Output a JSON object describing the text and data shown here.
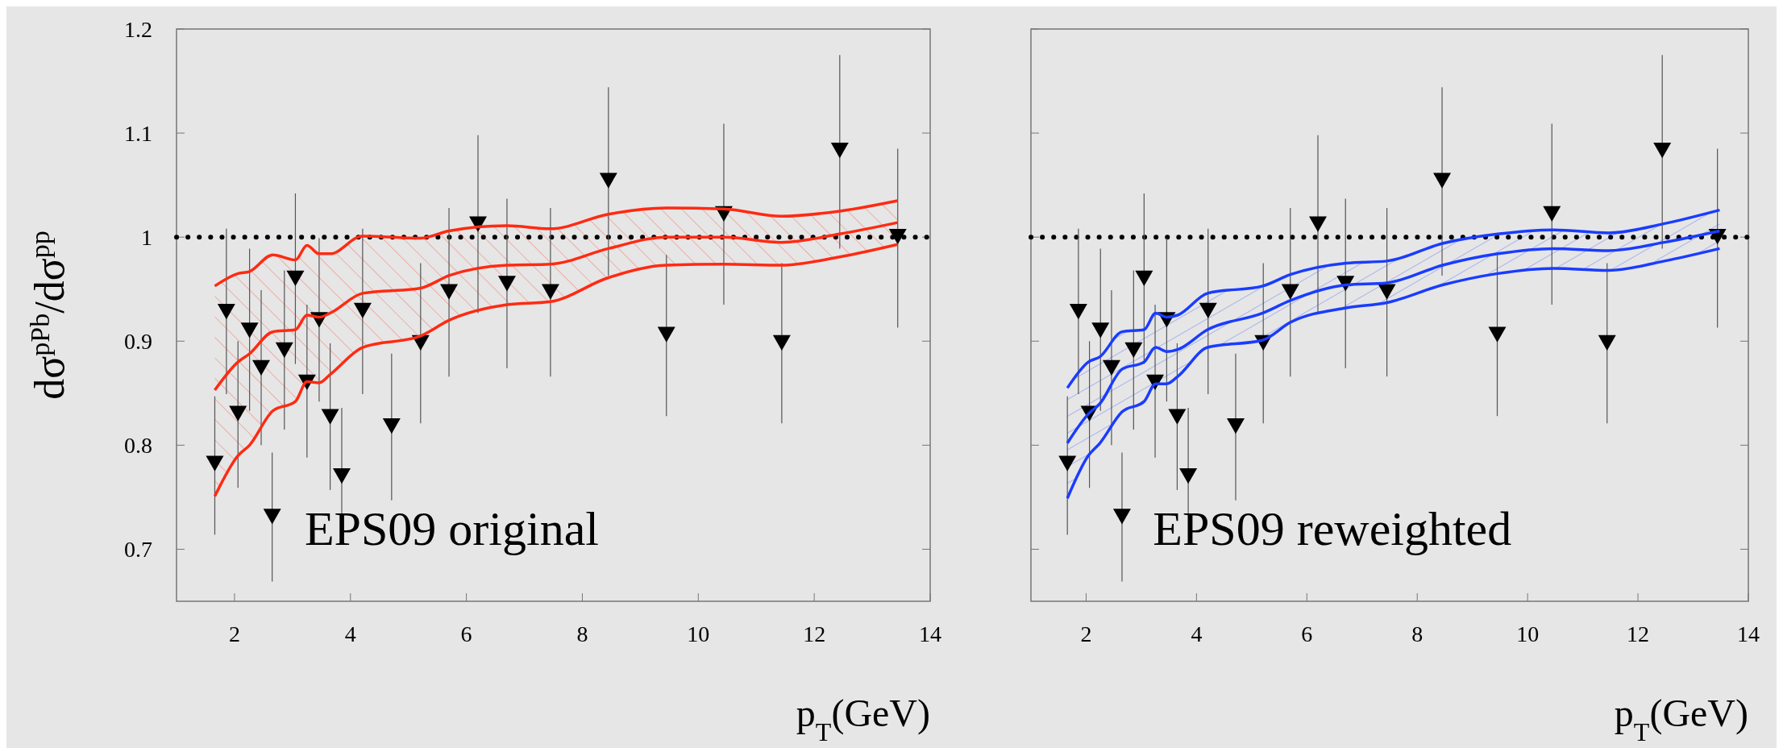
{
  "chart_data": [
    {
      "type": "scatter",
      "ylabel": "dσ$^{pPb}$/dσ$^{pp}$",
      "xlabel": "p$_{T}$(GeV)",
      "annotations": [
        "EPS09 original"
      ],
      "xlim": [
        1,
        14
      ],
      "ylim": [
        0.65,
        1.2
      ],
      "xticks": [
        2,
        4,
        6,
        8,
        10,
        12,
        14
      ],
      "yticks": [
        0.7,
        0.8,
        0.9,
        1,
        1.1,
        1.2
      ],
      "marker": "triangle",
      "grid": false,
      "ref_lines": [
        {
          "axis": "y",
          "value": 1,
          "line_style": "dotted",
          "color": "#000000"
        }
      ],
      "series": [
        {
          "color": "#000000",
          "x": [
            1.66,
            1.86,
            2.06,
            2.26,
            2.46,
            2.65,
            2.86,
            3.05,
            3.25,
            3.46,
            3.65,
            3.85,
            4.21,
            4.71,
            5.21,
            5.7,
            6.2,
            6.7,
            7.45,
            8.45,
            9.45,
            10.44,
            11.44,
            12.44,
            13.44
          ],
          "values": [
            0.783,
            0.929,
            0.831,
            0.911,
            0.875,
            0.732,
            0.892,
            0.961,
            0.861,
            0.921,
            0.828,
            0.771,
            0.93,
            0.819,
            0.899,
            0.948,
            1.013,
            0.956,
            0.948,
            1.055,
            0.907,
            1.023,
            0.899,
            1.084,
            1.001
          ],
          "errors": [
            [
              0.714,
              0.847
            ],
            [
              0.849,
              1.008
            ],
            [
              0.759,
              0.9
            ],
            [
              0.833,
              0.989
            ],
            [
              0.8,
              0.949
            ],
            [
              0.669,
              0.793
            ],
            [
              0.815,
              0.968
            ],
            [
              0.878,
              1.042
            ],
            [
              0.788,
              0.935
            ],
            [
              0.842,
              0.999
            ],
            [
              0.757,
              0.898
            ],
            [
              0.705,
              0.836
            ],
            [
              0.849,
              1.008
            ],
            [
              0.747,
              0.888
            ],
            [
              0.821,
              0.975
            ],
            [
              0.866,
              1.028
            ],
            [
              0.927,
              1.098
            ],
            [
              0.874,
              1.037
            ],
            [
              0.866,
              1.028
            ],
            [
              0.963,
              1.144
            ],
            [
              0.828,
              0.983
            ],
            [
              0.935,
              1.109
            ],
            [
              0.821,
              0.975
            ],
            [
              0.989,
              1.175
            ],
            [
              0.913,
              1.085
            ]
          ]
        },
        {
          "type": "line",
          "color": "#ff2a12",
          "line_style": "solid",
          "x": [
            1.66,
            2.06,
            2.26,
            2.66,
            3.05,
            3.25,
            3.46,
            3.65,
            4.21,
            5.21,
            5.7,
            6.7,
            7.45,
            8.45,
            9.45,
            10.44,
            11.44,
            12.44,
            13.44
          ],
          "marker": "none",
          "values": [
            0.853,
            0.88,
            0.888,
            0.909,
            0.911,
            0.925,
            0.923,
            0.927,
            0.946,
            0.951,
            0.963,
            0.973,
            0.974,
            0.989,
            1.0,
            1.0,
            0.995,
            1.003,
            1.014
          ],
          "lower": [
            0.751,
            0.79,
            0.8,
            0.833,
            0.842,
            0.861,
            0.86,
            0.868,
            0.894,
            0.905,
            0.92,
            0.935,
            0.938,
            0.961,
            0.973,
            0.974,
            0.973,
            0.981,
            0.993
          ],
          "upper": [
            0.953,
            0.965,
            0.967,
            0.983,
            0.978,
            0.992,
            0.984,
            0.984,
            1.001,
            0.999,
            1.006,
            1.011,
            1.008,
            1.022,
            1.028,
            1.027,
            1.02,
            1.025,
            1.035
          ]
        },
        {
          "type": "line",
          "color": "#ff2a12",
          "line_style": "solid",
          "x": [
            1.66,
            2.06,
            2.26,
            2.66,
            3.05,
            3.25,
            3.46,
            3.65,
            4.21,
            5.21,
            5.7,
            6.7,
            7.45,
            8.45,
            9.45,
            10.44,
            11.44,
            12.44,
            13.44
          ],
          "marker": "none",
          "values": [
            0.751,
            0.79,
            0.8,
            0.833,
            0.842,
            0.861,
            0.86,
            0.868,
            0.894,
            0.905,
            0.92,
            0.935,
            0.938,
            0.961,
            0.973,
            0.974,
            0.973,
            0.981,
            0.993
          ]
        },
        {
          "type": "line",
          "color": "#ff2a12",
          "line_style": "solid",
          "x": [
            1.66,
            2.06,
            2.26,
            2.66,
            3.05,
            3.25,
            3.46,
            3.65,
            4.21,
            5.21,
            5.7,
            6.7,
            7.45,
            8.45,
            9.45,
            10.44,
            11.44,
            12.44,
            13.44
          ],
          "marker": "none",
          "values": [
            0.953,
            0.965,
            0.967,
            0.983,
            0.978,
            0.992,
            0.984,
            0.984,
            1.001,
            0.999,
            1.006,
            1.011,
            1.008,
            1.022,
            1.028,
            1.027,
            1.02,
            1.025,
            1.035
          ]
        }
      ]
    },
    {
      "type": "scatter",
      "xlabel": "p$_{T}$(GeV)",
      "annotations": [
        "EPS09 reweighted"
      ],
      "xlim": [
        1,
        14
      ],
      "ylim": [
        0.65,
        1.2
      ],
      "xticks": [
        2,
        4,
        6,
        8,
        10,
        12,
        14
      ],
      "yticks": [
        0.7,
        0.8,
        0.9,
        1,
        1.1,
        1.2
      ],
      "tick_labels": "x",
      "marker": "triangle",
      "grid": false,
      "ref_lines": [
        {
          "axis": "y",
          "value": 1,
          "line_style": "dotted",
          "color": "#000000"
        }
      ],
      "series": [
        {
          "color": "#000000",
          "x": [
            1.66,
            1.86,
            2.06,
            2.26,
            2.46,
            2.65,
            2.86,
            3.05,
            3.25,
            3.46,
            3.65,
            3.85,
            4.21,
            4.71,
            5.21,
            5.7,
            6.2,
            6.7,
            7.45,
            8.45,
            9.45,
            10.44,
            11.44,
            12.44,
            13.44
          ],
          "values": [
            0.783,
            0.929,
            0.831,
            0.911,
            0.875,
            0.732,
            0.892,
            0.961,
            0.861,
            0.921,
            0.828,
            0.771,
            0.93,
            0.819,
            0.899,
            0.948,
            1.013,
            0.956,
            0.948,
            1.055,
            0.907,
            1.023,
            0.899,
            1.084,
            1.001
          ],
          "errors": [
            [
              0.714,
              0.847
            ],
            [
              0.849,
              1.008
            ],
            [
              0.759,
              0.9
            ],
            [
              0.833,
              0.989
            ],
            [
              0.8,
              0.949
            ],
            [
              0.669,
              0.793
            ],
            [
              0.815,
              0.968
            ],
            [
              0.878,
              1.042
            ],
            [
              0.788,
              0.935
            ],
            [
              0.842,
              0.999
            ],
            [
              0.757,
              0.898
            ],
            [
              0.705,
              0.836
            ],
            [
              0.849,
              1.008
            ],
            [
              0.747,
              0.888
            ],
            [
              0.821,
              0.975
            ],
            [
              0.866,
              1.028
            ],
            [
              0.927,
              1.098
            ],
            [
              0.874,
              1.037
            ],
            [
              0.866,
              1.028
            ],
            [
              0.963,
              1.144
            ],
            [
              0.828,
              0.983
            ],
            [
              0.935,
              1.109
            ],
            [
              0.821,
              0.975
            ],
            [
              0.989,
              1.175
            ],
            [
              0.913,
              1.085
            ]
          ]
        },
        {
          "type": "line",
          "color": "#1a3cff",
          "line_style": "solid",
          "x": [
            1.66,
            2.04,
            2.25,
            2.65,
            3.05,
            3.26,
            3.46,
            3.66,
            4.2,
            5.2,
            5.7,
            6.71,
            7.45,
            8.46,
            9.46,
            10.47,
            11.47,
            12.48,
            13.48
          ],
          "marker": "none",
          "values": [
            0.802,
            0.83,
            0.84,
            0.873,
            0.88,
            0.894,
            0.89,
            0.892,
            0.911,
            0.927,
            0.939,
            0.954,
            0.956,
            0.973,
            0.984,
            0.989,
            0.987,
            0.995,
            1.006
          ],
          "lower": [
            0.749,
            0.79,
            0.802,
            0.832,
            0.842,
            0.859,
            0.859,
            0.866,
            0.894,
            0.901,
            0.918,
            0.932,
            0.937,
            0.954,
            0.965,
            0.97,
            0.968,
            0.977,
            0.989
          ],
          "upper": [
            0.855,
            0.88,
            0.885,
            0.909,
            0.911,
            0.927,
            0.923,
            0.925,
            0.946,
            0.953,
            0.964,
            0.975,
            0.977,
            0.994,
            1.003,
            1.007,
            1.004,
            1.013,
            1.026
          ]
        },
        {
          "type": "line",
          "color": "#1a3cff",
          "line_style": "solid",
          "x": [
            1.66,
            2.04,
            2.25,
            2.65,
            3.05,
            3.26,
            3.46,
            3.66,
            4.2,
            5.2,
            5.7,
            6.71,
            7.45,
            8.46,
            9.46,
            10.47,
            11.47,
            12.48,
            13.48
          ],
          "marker": "none",
          "values": [
            0.749,
            0.79,
            0.802,
            0.832,
            0.842,
            0.859,
            0.859,
            0.866,
            0.894,
            0.901,
            0.918,
            0.932,
            0.937,
            0.954,
            0.965,
            0.97,
            0.968,
            0.977,
            0.989
          ]
        },
        {
          "type": "line",
          "color": "#1a3cff",
          "line_style": "solid",
          "x": [
            1.66,
            2.04,
            2.25,
            2.65,
            3.05,
            3.26,
            3.46,
            3.66,
            4.2,
            5.2,
            5.7,
            6.71,
            7.45,
            8.46,
            9.46,
            10.47,
            11.47,
            12.48,
            13.48
          ],
          "marker": "none",
          "values": [
            0.855,
            0.88,
            0.885,
            0.909,
            0.911,
            0.927,
            0.923,
            0.925,
            0.946,
            0.953,
            0.964,
            0.975,
            0.977,
            0.994,
            1.003,
            1.007,
            1.004,
            1.013,
            1.026
          ]
        }
      ]
    }
  ]
}
